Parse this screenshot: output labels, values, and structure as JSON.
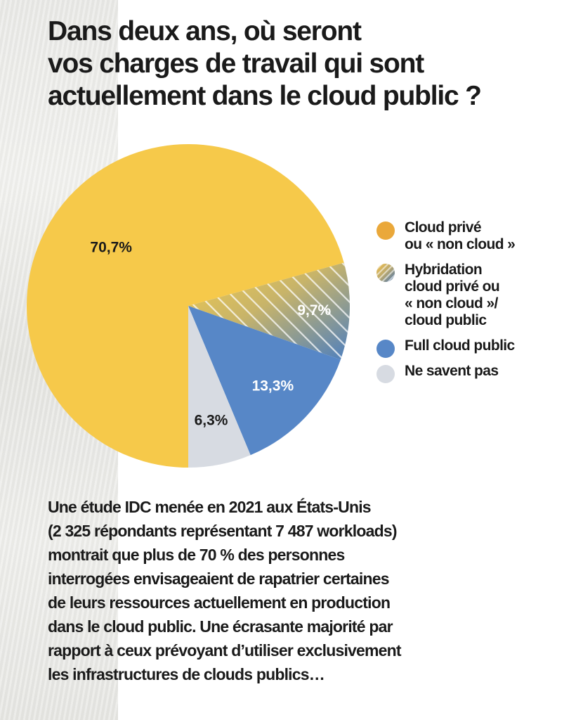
{
  "title_lines": [
    "Dans deux ans, où seront",
    "vos charges de travail qui sont",
    "actuellement dans le cloud public ?"
  ],
  "colors": {
    "cloud_prive": "#f6c94a",
    "hybridation_yellow": "#f0c84c",
    "hybridation_blue": "#4d7fbf",
    "full_cloud": "#5787c7",
    "ne_savent_pas": "#d7dbe2",
    "legend_cloud_prive": "#eaa83a"
  },
  "chart_data": {
    "type": "pie",
    "slices": [
      {
        "name": "Cloud privé ou « non cloud »",
        "value": 70.7,
        "label": "70,7%"
      },
      {
        "name": "Hybridation cloud privé ou « non cloud »/ cloud public",
        "value": 9.7,
        "label": "9,7%"
      },
      {
        "name": "Full cloud public",
        "value": 13.3,
        "label": "13,3%"
      },
      {
        "name": "Ne savent pas",
        "value": 6.3,
        "label": "6,3%"
      }
    ],
    "legend_position": "right"
  },
  "legend": [
    {
      "icon": "orange-circle-icon",
      "lines": [
        "Cloud privé",
        "ou « non cloud »"
      ]
    },
    {
      "icon": "striped-gradient-circle-icon",
      "lines": [
        "Hybridation",
        "cloud privé ou",
        "« non cloud »/",
        "cloud public"
      ]
    },
    {
      "icon": "blue-circle-icon",
      "lines": [
        "Full cloud public"
      ]
    },
    {
      "icon": "grey-circle-icon",
      "lines": [
        "Ne savent pas"
      ]
    }
  ],
  "body_lines": [
    "Une étude IDC menée en 2021 aux États-Unis",
    "(2 325 répondants représentant 7 487 workloads)",
    "montrait que plus de 70 % des personnes",
    "interrogées envisageaient de rapatrier certaines",
    "de leurs ressources actuellement en production",
    "dans le cloud public. Une écrasante majorité par",
    "rapport à ceux prévoyant d’utiliser exclusivement",
    "les infrastructures de clouds publics…"
  ]
}
